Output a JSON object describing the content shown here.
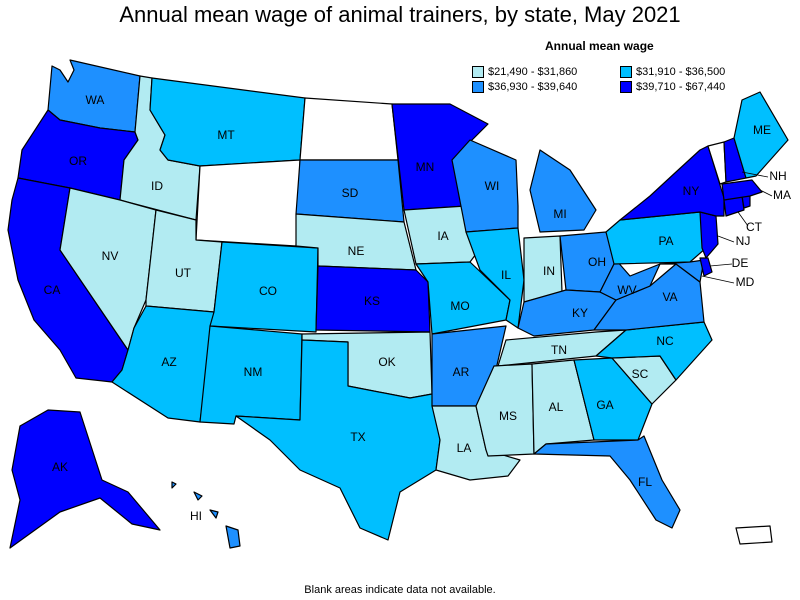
{
  "title": "Annual mean wage of animal trainers, by state, May 2021",
  "legend": {
    "title": "Annual mean wage",
    "items": [
      {
        "label": "$21,490 - $31,860",
        "color": "#b2ebf2"
      },
      {
        "label": "$31,910 - $36,500",
        "color": "#00bfff"
      },
      {
        "label": "$36,930 - $39,640",
        "color": "#1e90ff"
      },
      {
        "label": "$39,710 - $67,440",
        "color": "#0000ff"
      }
    ]
  },
  "note": "Blank areas indicate data not available.",
  "classes": {
    "WA": 2,
    "OR": 3,
    "CA": 3,
    "ID": 0,
    "NV": 0,
    "MT": 1,
    "WY": -1,
    "UT": 0,
    "AZ": 1,
    "CO": 1,
    "NM": 1,
    "ND": -1,
    "SD": 2,
    "NE": 0,
    "KS": 3,
    "OK": 0,
    "TX": 1,
    "MN": 3,
    "IA": 0,
    "MO": 1,
    "AR": 2,
    "LA": 0,
    "WI": 2,
    "IL": 1,
    "MI": 2,
    "IN": 0,
    "OH": 2,
    "KY": 2,
    "TN": 0,
    "MS": 0,
    "AL": 0,
    "GA": 1,
    "FL": 2,
    "SC": 0,
    "NC": 1,
    "VA": 2,
    "WV": 2,
    "PA": 1,
    "NY": 3,
    "ME": 1,
    "NH": 3,
    "VT": -1,
    "MA": 3,
    "RI": 3,
    "CT": 3,
    "NJ": 3,
    "DE": 3,
    "MD": 2,
    "AK": 3,
    "HI": 2,
    "PR": -1
  },
  "labels": {
    "WA": "WA",
    "OR": "OR",
    "CA": "CA",
    "ID": "ID",
    "NV": "NV",
    "MT": "MT",
    "UT": "UT",
    "AZ": "AZ",
    "CO": "CO",
    "NM": "NM",
    "SD": "SD",
    "NE": "NE",
    "KS": "KS",
    "OK": "OK",
    "TX": "TX",
    "MN": "MN",
    "IA": "IA",
    "MO": "MO",
    "AR": "AR",
    "LA": "LA",
    "WI": "WI",
    "IL": "IL",
    "MI": "MI",
    "IN": "IN",
    "OH": "OH",
    "KY": "KY",
    "TN": "TN",
    "MS": "MS",
    "AL": "AL",
    "GA": "GA",
    "FL": "FL",
    "SC": "SC",
    "NC": "NC",
    "VA": "VA",
    "WV": "WV",
    "PA": "PA",
    "NY": "NY",
    "ME": "ME",
    "NH": "NH",
    "MA": "MA",
    "CT": "CT",
    "NJ": "NJ",
    "DE": "DE",
    "MD": "MD",
    "AK": "AK",
    "HI": "HI"
  }
}
